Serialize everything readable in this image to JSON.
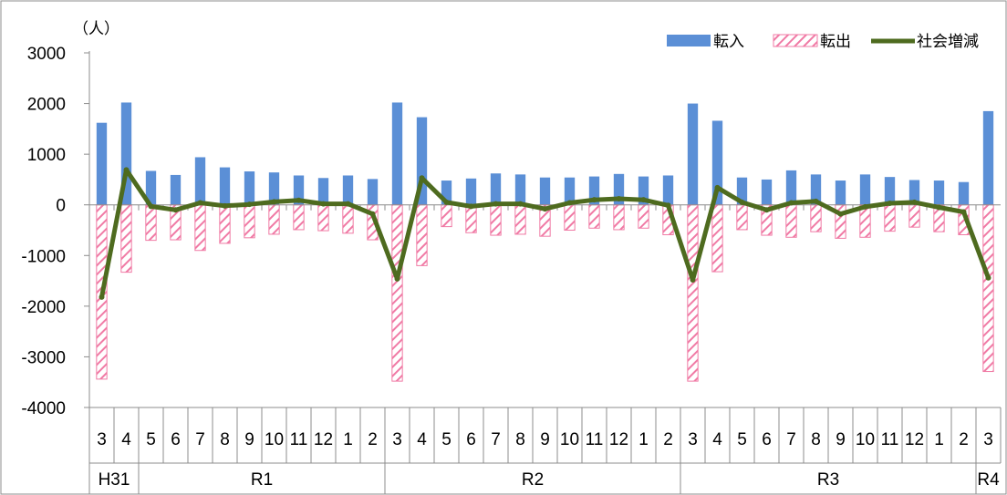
{
  "chart_data": {
    "type": "bar",
    "unit_label": "（人）",
    "categories": [
      "3",
      "4",
      "5",
      "6",
      "7",
      "8",
      "9",
      "10",
      "11",
      "12",
      "1",
      "2",
      "3",
      "4",
      "5",
      "6",
      "7",
      "8",
      "9",
      "10",
      "11",
      "12",
      "1",
      "2",
      "3",
      "4",
      "5",
      "6",
      "7",
      "8",
      "9",
      "10",
      "11",
      "12",
      "1",
      "2",
      "3"
    ],
    "groups": [
      {
        "label": "H31",
        "start": 0,
        "end": 1
      },
      {
        "label": "R1",
        "start": 2,
        "end": 11
      },
      {
        "label": "R2",
        "start": 12,
        "end": 23
      },
      {
        "label": "R3",
        "start": 24,
        "end": 35
      },
      {
        "label": "R4",
        "start": 36,
        "end": 38
      }
    ],
    "series": [
      {
        "name": "転入",
        "type": "bar",
        "color": "#5b8fd6",
        "values": [
          1620,
          2020,
          670,
          590,
          940,
          740,
          660,
          640,
          580,
          530,
          580,
          510,
          2020,
          1730,
          480,
          520,
          620,
          600,
          540,
          540,
          560,
          610,
          560,
          580,
          2000,
          1660,
          540,
          500,
          680,
          600,
          480,
          600,
          550,
          490,
          480,
          450,
          1850
        ]
      },
      {
        "name": "転出",
        "type": "bar",
        "pattern": "hatch",
        "color": "#f07aa5",
        "values": [
          -3440,
          -1330,
          -700,
          -690,
          -900,
          -760,
          -650,
          -580,
          -490,
          -510,
          -560,
          -690,
          -3480,
          -1200,
          -430,
          -550,
          -600,
          -580,
          -620,
          -500,
          -460,
          -490,
          -460,
          -590,
          -3480,
          -1320,
          -490,
          -600,
          -640,
          -530,
          -660,
          -640,
          -520,
          -440,
          -530,
          -590,
          -3290
        ]
      },
      {
        "name": "社会増減",
        "type": "line",
        "color": "#4e6b1f",
        "values": [
          -1820,
          690,
          -30,
          -100,
          40,
          -20,
          10,
          60,
          90,
          20,
          20,
          -180,
          -1460,
          530,
          50,
          -30,
          20,
          20,
          -80,
          40,
          100,
          120,
          100,
          -10,
          -1480,
          340,
          50,
          -100,
          40,
          70,
          -180,
          -40,
          30,
          50,
          -50,
          -140,
          -1440
        ]
      }
    ],
    "ylim": [
      -4000,
      3000
    ],
    "yticks": [
      "3000",
      "2000",
      "1000",
      "0",
      "-1000",
      "-2000",
      "-3000",
      "-4000"
    ],
    "ytick_values": [
      3000,
      2000,
      1000,
      0,
      -1000,
      -2000,
      -3000,
      -4000
    ],
    "legend_position": "top-right",
    "grid": false
  }
}
